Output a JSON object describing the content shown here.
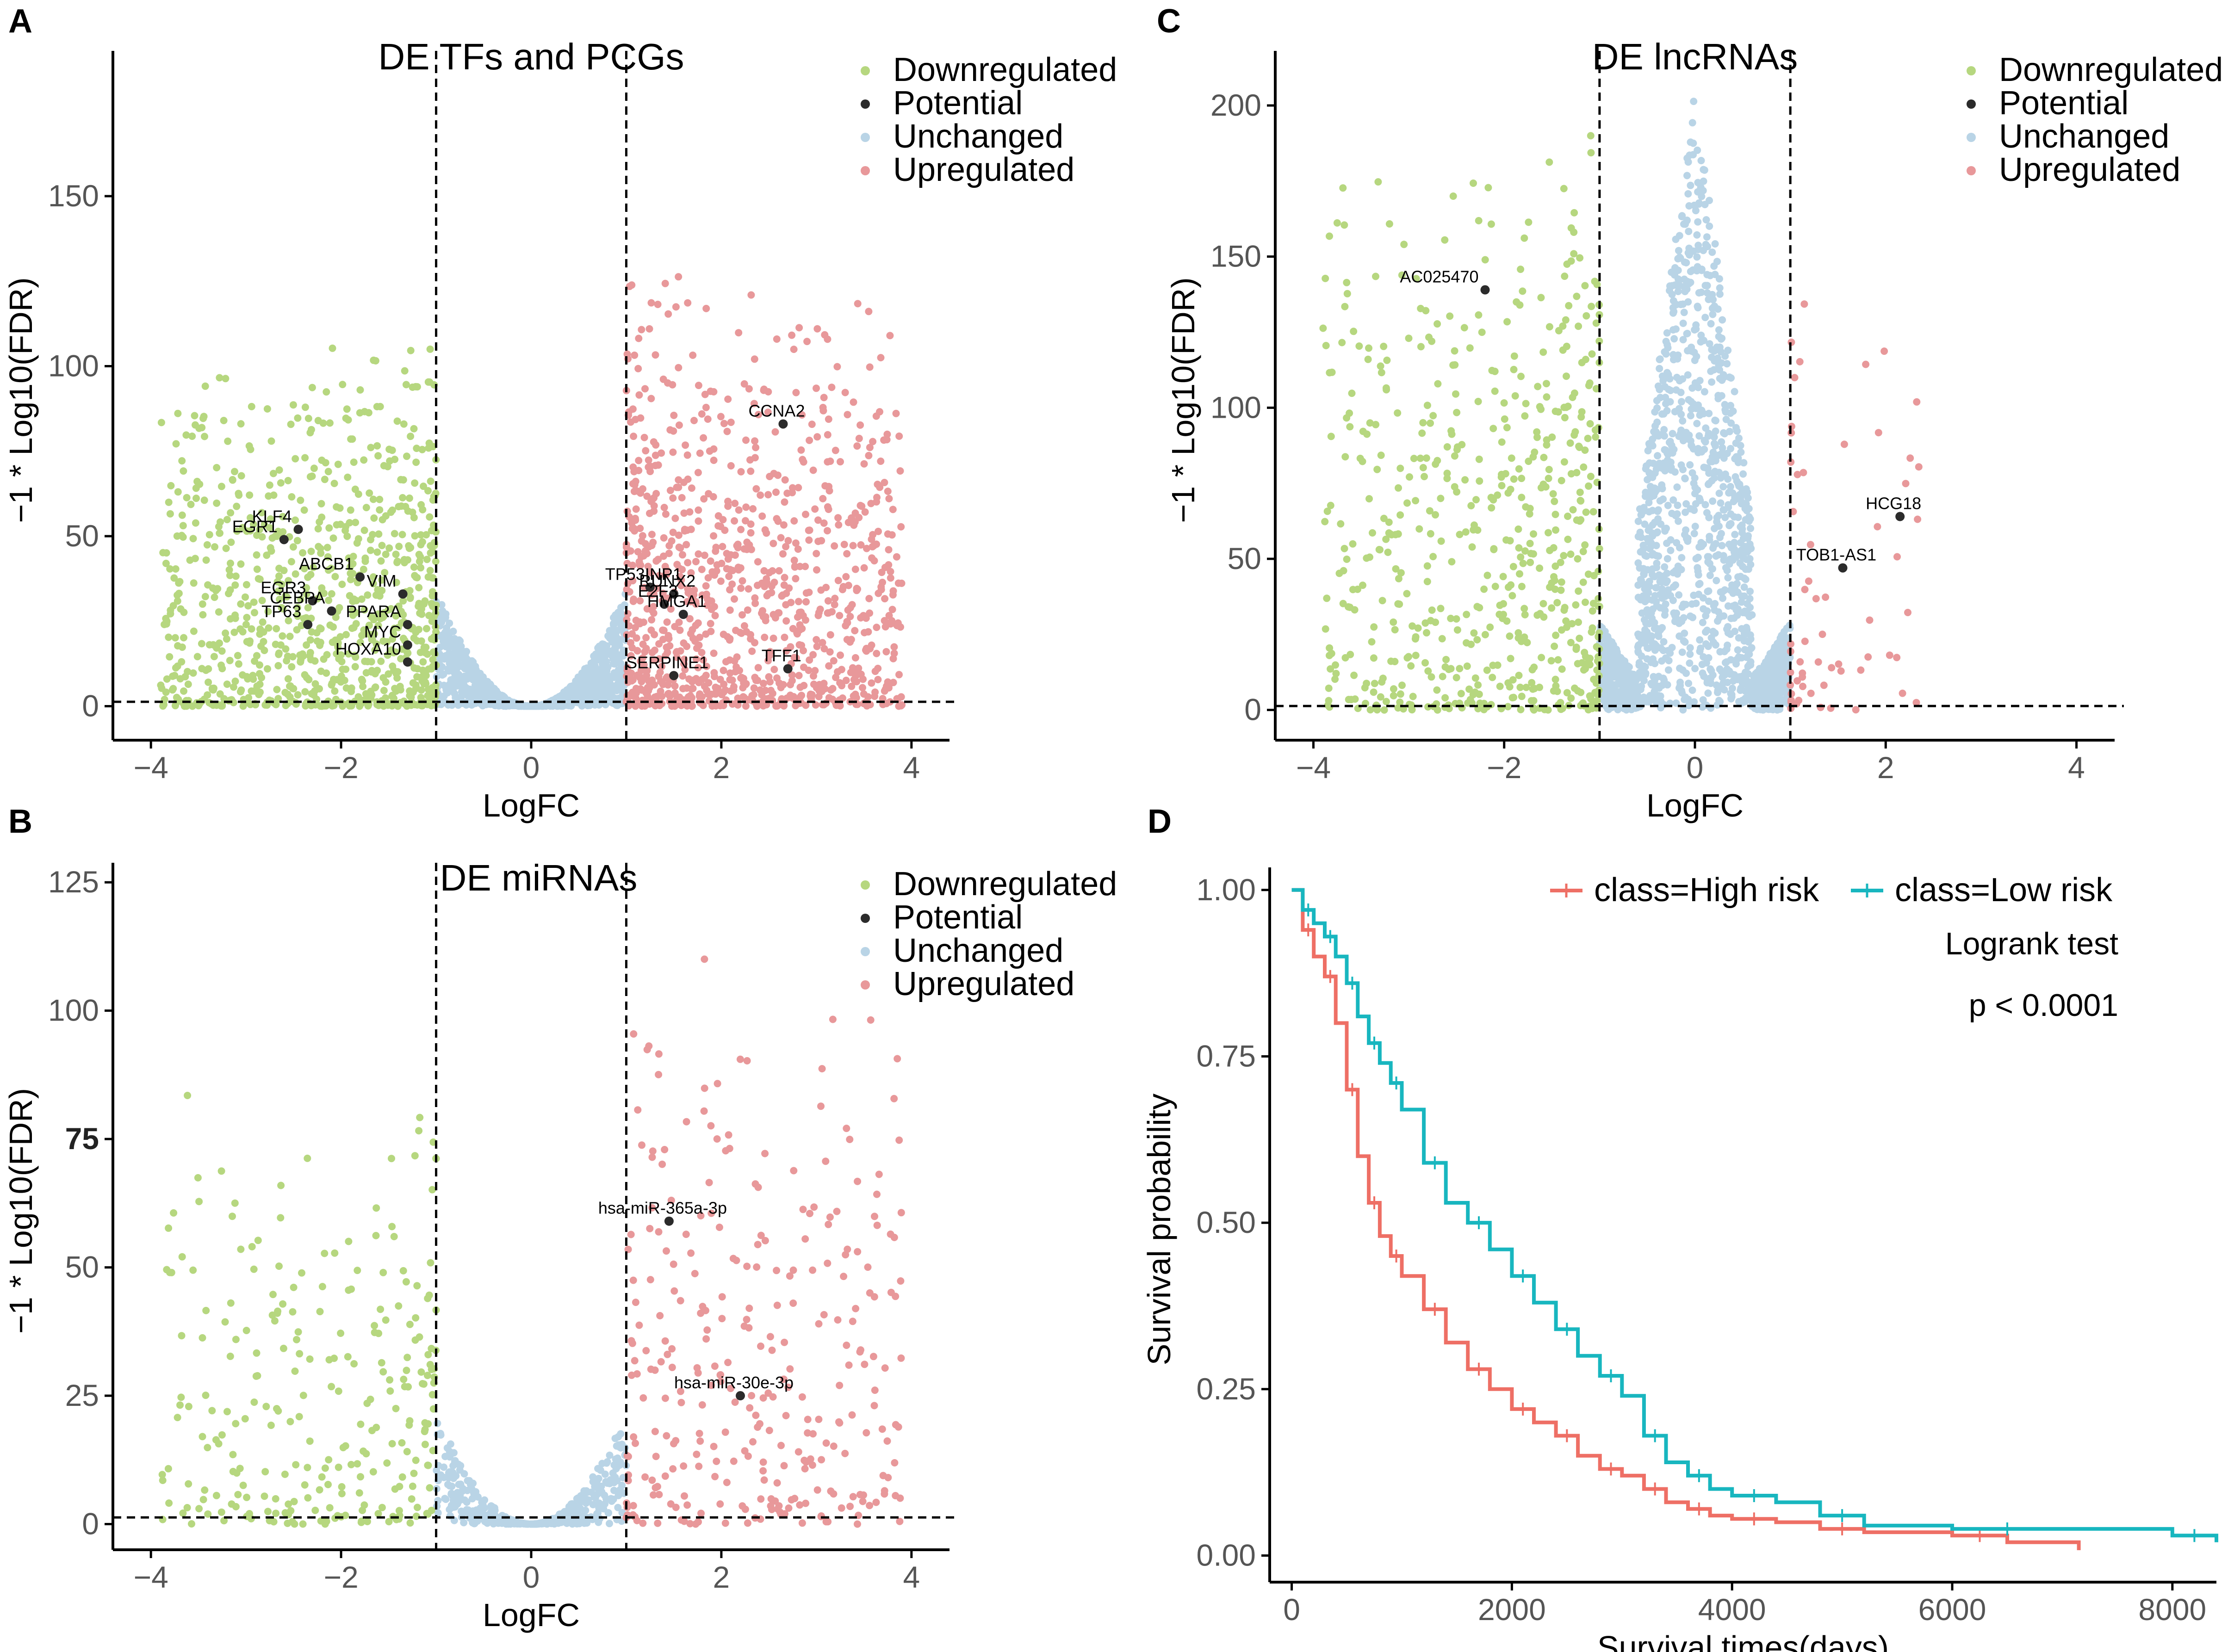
{
  "figure": {
    "legend_labels": [
      "Downregulated",
      "Potential",
      "Unchanged",
      "Upregulated"
    ],
    "colors": {
      "Downregulated": "#b6d77f",
      "Potential": "#2b2b2b",
      "Unchanged": "#b9d4e6",
      "Upregulated": "#e8989a",
      "high_risk": "#ee6f65",
      "low_risk": "#18b6bf"
    }
  },
  "chart_data": [
    {
      "panel": "A",
      "type": "scatter",
      "title": "DE TFs and PCGs",
      "xlabel": "LogFC",
      "ylabel": "−1 * Log10(FDR)",
      "xlim": [
        -4.4,
        4.4
      ],
      "ylim": [
        -10,
        190
      ],
      "xticks": [
        -4,
        -2,
        0,
        2,
        4
      ],
      "xtick_labels": [
        "−4",
        "−2",
        "0",
        "2",
        "4"
      ],
      "yticks": [
        0,
        50,
        100,
        150
      ],
      "ytick_labels": [
        "0",
        "50",
        "100",
        "150"
      ],
      "thresholds": {
        "logfc": [
          -1,
          1
        ],
        "fdr_line": 1.3
      },
      "cloud": {
        "down_max": 110,
        "up_max": 130,
        "down_count": 900,
        "up_count": 1000,
        "unchanged_count": 1100,
        "unchanged_max": 35,
        "seed": 11
      },
      "potential": [
        {
          "label": "KLF4",
          "x": -2.45,
          "y": 52
        },
        {
          "label": "EGR1",
          "x": -2.6,
          "y": 49
        },
        {
          "label": "EGR3",
          "x": -2.3,
          "y": 31
        },
        {
          "label": "ABCB1",
          "x": -1.8,
          "y": 38
        },
        {
          "label": "VIM",
          "x": -1.35,
          "y": 33
        },
        {
          "label": "CEBPA",
          "x": -2.1,
          "y": 28
        },
        {
          "label": "PPARA",
          "x": -1.3,
          "y": 24
        },
        {
          "label": "TP63",
          "x": -2.35,
          "y": 24
        },
        {
          "label": "MYC",
          "x": -1.3,
          "y": 18
        },
        {
          "label": "HOXA10",
          "x": -1.3,
          "y": 13
        },
        {
          "label": "TP53INP1",
          "x": 1.25,
          "y": 35
        },
        {
          "label": "RUNX2",
          "x": 1.5,
          "y": 33
        },
        {
          "label": "E2F3",
          "x": 1.4,
          "y": 30
        },
        {
          "label": "HMGA1",
          "x": 1.6,
          "y": 27
        },
        {
          "label": "SERPINE1",
          "x": 1.5,
          "y": 9
        },
        {
          "label": "TFF1",
          "x": 2.7,
          "y": 11
        },
        {
          "label": "CCNA2",
          "x": 2.65,
          "y": 83
        }
      ]
    },
    {
      "panel": "B",
      "type": "scatter",
      "title": "DE miRNAs",
      "xlabel": "LogFC",
      "ylabel": "−1 * Log10(FDR)",
      "xlim": [
        -4.4,
        4.4
      ],
      "ylim": [
        -5,
        127
      ],
      "xticks": [
        -4,
        -2,
        0,
        2,
        4
      ],
      "xtick_labels": [
        "−4",
        "−2",
        "0",
        "2",
        "4"
      ],
      "yticks": [
        0,
        25,
        50,
        75,
        100,
        125
      ],
      "ytick_labels": [
        "0",
        "25",
        "50",
        "75",
        "100",
        "125"
      ],
      "thresholds": {
        "logfc": [
          -1,
          1
        ],
        "fdr_line": 1.3
      },
      "cloud": {
        "down_max": 90,
        "up_max": 118,
        "down_count": 260,
        "up_count": 300,
        "unchanged_count": 500,
        "unchanged_max": 22,
        "seed": 23
      },
      "potential": [
        {
          "label": "hsa-miR-365a-3p",
          "x": 1.45,
          "y": 59
        },
        {
          "label": "hsa-miR-30e-3p",
          "x": 2.2,
          "y": 25
        }
      ]
    },
    {
      "panel": "C",
      "type": "scatter",
      "title": "DE lncRNAs",
      "xlabel": "LogFC",
      "ylabel": "−1 * Log10(FDR)",
      "xlim": [
        -4.4,
        4.4
      ],
      "ylim": [
        -10,
        215
      ],
      "xticks": [
        -4,
        -2,
        0,
        2,
        4
      ],
      "xtick_labels": [
        "−4",
        "−2",
        "0",
        "2",
        "4"
      ],
      "yticks": [
        0,
        50,
        100,
        150,
        200
      ],
      "ytick_labels": [
        "0",
        "50",
        "100",
        "150",
        "200"
      ],
      "thresholds": {
        "logfc": [
          -1,
          1
        ],
        "fdr_line": 1.3
      },
      "cloud": {
        "down_max": 205,
        "up_max": 155,
        "down_count": 600,
        "up_count": 60,
        "unchanged_count": 1700,
        "unchanged_max": 205,
        "seed": 37
      },
      "potential": [
        {
          "label": "AC025470",
          "x": -2.2,
          "y": 139
        },
        {
          "label": "HCG18",
          "x": 2.15,
          "y": 64
        },
        {
          "label": "TOB1-AS1",
          "x": 1.55,
          "y": 47
        }
      ]
    },
    {
      "panel": "D",
      "type": "line",
      "title": "",
      "xlabel": "Survival times(days)",
      "ylabel": "Survival probability",
      "xlim": [
        -200,
        8400
      ],
      "ylim": [
        -0.04,
        1.02
      ],
      "xticks": [
        0,
        2000,
        4000,
        6000,
        8000
      ],
      "xtick_labels": [
        "0",
        "2000",
        "4000",
        "6000",
        "8000"
      ],
      "yticks": [
        0,
        0.25,
        0.5,
        0.75,
        1
      ],
      "ytick_labels": [
        "0.00",
        "0.25",
        "0.50",
        "0.75",
        "1.00"
      ],
      "legend": [
        "class=High risk",
        "class=Low risk"
      ],
      "annotations": [
        "Logrank test",
        "p < 0.0001"
      ],
      "series": [
        {
          "name": "class=High risk",
          "x": [
            0,
            100,
            200,
            300,
            400,
            500,
            600,
            700,
            800,
            900,
            1000,
            1200,
            1400,
            1600,
            1800,
            2000,
            2200,
            2400,
            2600,
            2800,
            3000,
            3200,
            3400,
            3600,
            3800,
            4000,
            4400,
            4800,
            5200,
            6000,
            6500,
            7150
          ],
          "values": [
            1.0,
            0.94,
            0.9,
            0.87,
            0.8,
            0.7,
            0.6,
            0.53,
            0.48,
            0.45,
            0.42,
            0.37,
            0.32,
            0.28,
            0.25,
            0.22,
            0.2,
            0.18,
            0.15,
            0.13,
            0.12,
            0.1,
            0.08,
            0.07,
            0.06,
            0.055,
            0.05,
            0.04,
            0.035,
            0.03,
            0.02,
            0.008
          ]
        },
        {
          "name": "class=Low risk",
          "x": [
            0,
            100,
            200,
            300,
            400,
            500,
            600,
            700,
            800,
            900,
            1000,
            1200,
            1400,
            1600,
            1800,
            2000,
            2200,
            2400,
            2600,
            2800,
            3000,
            3200,
            3400,
            3600,
            3800,
            4000,
            4400,
            4800,
            5200,
            6000,
            7000,
            8000,
            8400
          ],
          "values": [
            1.0,
            0.97,
            0.95,
            0.93,
            0.9,
            0.86,
            0.81,
            0.77,
            0.74,
            0.71,
            0.67,
            0.59,
            0.53,
            0.5,
            0.46,
            0.42,
            0.38,
            0.34,
            0.3,
            0.27,
            0.24,
            0.18,
            0.14,
            0.12,
            0.1,
            0.09,
            0.08,
            0.06,
            0.045,
            0.04,
            0.04,
            0.03,
            0.02
          ]
        }
      ]
    }
  ]
}
